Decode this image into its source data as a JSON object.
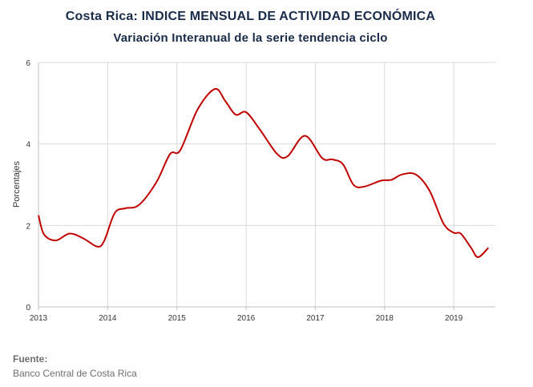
{
  "header": {
    "title": "Costa Rica: INDICE MENSUAL DE ACTIVIDAD ECONÓMICA",
    "subtitle": "Variación Interanual de la serie tendencia ciclo"
  },
  "source": {
    "label": "Fuente:",
    "text": "Banco Central de Costa Rica"
  },
  "colors": {
    "line": "#c00000",
    "grid": "#d9d9d9",
    "axis": "#bfbfbf",
    "title": "#1a2b4a"
  },
  "chart_data": {
    "type": "line",
    "ylabel": "Porcentajes",
    "xlabel": "",
    "xlim": [
      2013.0,
      2019.6
    ],
    "ylim": [
      0,
      6
    ],
    "yticks": [
      0,
      2,
      4,
      6
    ],
    "xticks": [
      2013,
      2014,
      2015,
      2016,
      2017,
      2018,
      2019
    ],
    "xtick_labels": [
      "2013",
      "2014",
      "2015",
      "2016",
      "2017",
      "2018",
      "2019"
    ],
    "grid": true,
    "series": [
      {
        "x": [
          2013.0,
          2013.08,
          2013.25,
          2013.45,
          2013.65,
          2013.85,
          2013.95,
          2014.1,
          2014.25,
          2014.45,
          2014.7,
          2014.9,
          2015.05,
          2015.3,
          2015.55,
          2015.7,
          2015.85,
          2016.0,
          2016.2,
          2016.45,
          2016.6,
          2016.85,
          2017.1,
          2017.25,
          2017.4,
          2017.55,
          2017.7,
          2017.95,
          2018.1,
          2018.25,
          2018.45,
          2018.65,
          2018.85,
          2019.0,
          2019.1,
          2019.25,
          2019.35,
          2019.5
        ],
        "y": [
          2.25,
          1.78,
          1.63,
          1.8,
          1.68,
          1.48,
          1.62,
          2.3,
          2.42,
          2.5,
          3.05,
          3.75,
          3.85,
          4.85,
          5.35,
          5.05,
          4.72,
          4.78,
          4.35,
          3.75,
          3.7,
          4.2,
          3.65,
          3.62,
          3.5,
          3.0,
          2.95,
          3.1,
          3.12,
          3.25,
          3.25,
          2.85,
          2.05,
          1.82,
          1.8,
          1.45,
          1.22,
          1.45
        ]
      }
    ]
  }
}
